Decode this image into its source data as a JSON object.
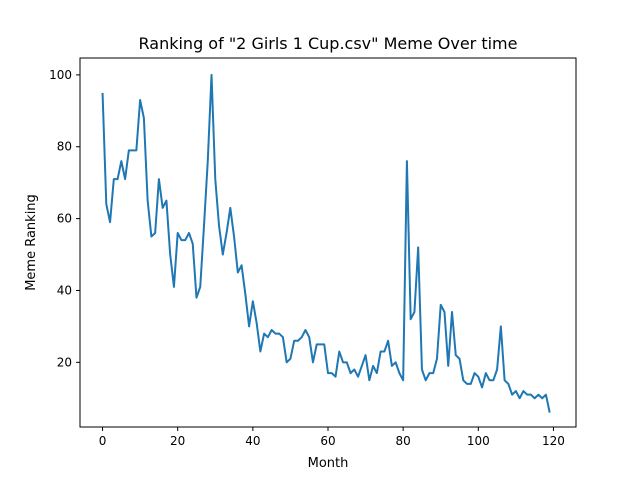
{
  "chart_data": {
    "type": "line",
    "title": "Ranking of \"2 Girls 1 Cup.csv\" Meme Over time",
    "xlabel": "Month",
    "ylabel": "Meme Ranking",
    "xlim": [
      -6,
      126
    ],
    "ylim": [
      2,
      104.7
    ],
    "xticks": [
      0,
      20,
      40,
      60,
      80,
      100,
      120
    ],
    "yticks": [
      20,
      40,
      60,
      80,
      100
    ],
    "grid": false,
    "series": [
      {
        "color": "#1f77b4",
        "x": [
          0,
          1,
          2,
          3,
          4,
          5,
          6,
          7,
          8,
          9,
          10,
          11,
          12,
          13,
          14,
          15,
          16,
          17,
          18,
          19,
          20,
          21,
          22,
          23,
          24,
          25,
          26,
          27,
          28,
          29,
          30,
          31,
          32,
          33,
          34,
          35,
          36,
          37,
          38,
          39,
          40,
          41,
          42,
          43,
          44,
          45,
          46,
          47,
          48,
          49,
          50,
          51,
          52,
          53,
          54,
          55,
          56,
          57,
          58,
          59,
          60,
          61,
          62,
          63,
          64,
          65,
          66,
          67,
          68,
          69,
          70,
          71,
          72,
          73,
          74,
          75,
          76,
          77,
          78,
          79,
          80,
          81,
          82,
          83,
          84,
          85,
          86,
          87,
          88,
          89,
          90,
          91,
          92,
          93,
          94,
          95,
          96,
          97,
          98,
          99,
          100,
          101,
          102,
          103,
          104,
          105,
          106,
          107,
          108,
          109,
          110,
          111,
          112,
          113,
          114,
          115,
          116,
          117,
          118,
          119
        ],
        "values": [
          95,
          64,
          59,
          71,
          71,
          76,
          71,
          79,
          79,
          79,
          93,
          88,
          65,
          55,
          56,
          71,
          63,
          65,
          50,
          41,
          56,
          54,
          54,
          56,
          53,
          38,
          41,
          58,
          76,
          100,
          71,
          58,
          50,
          56,
          63,
          55,
          45,
          47,
          39,
          30,
          37,
          31,
          23,
          28,
          27,
          29,
          28,
          28,
          27,
          20,
          21,
          26,
          26,
          27,
          29,
          27,
          20,
          25,
          25,
          25,
          17,
          17,
          16,
          23,
          20,
          20,
          17,
          18,
          16,
          19,
          22,
          15,
          19,
          17,
          23,
          23,
          26,
          19,
          20,
          17,
          15,
          76,
          32,
          34,
          52,
          18,
          15,
          17,
          17,
          21,
          36,
          34,
          19,
          34,
          22,
          21,
          15,
          14,
          14,
          17,
          16,
          13,
          17,
          15,
          15,
          18,
          30,
          15,
          14,
          11,
          12,
          10,
          12,
          11,
          11,
          10,
          11,
          10,
          11,
          6
        ]
      }
    ]
  }
}
